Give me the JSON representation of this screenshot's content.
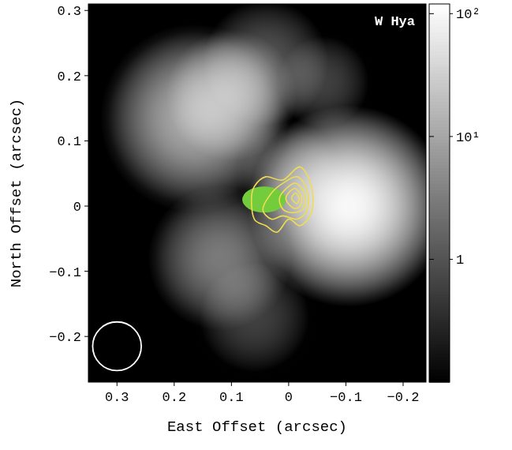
{
  "chart_data": {
    "type": "image",
    "title": "W Hya",
    "x_label": "East Offset (arcsec)",
    "y_label": "North Offset (arcsec)",
    "xlim": [
      0.35,
      -0.24
    ],
    "ylim": [
      -0.27,
      0.31
    ],
    "xticks": [
      0.3,
      0.2,
      0.1,
      0,
      {
        "value": -0.1,
        "label": "−0.1"
      },
      {
        "value": -0.2,
        "label": "−0.2"
      }
    ],
    "yticks": [
      {
        "value": -0.2,
        "label": "−0.2"
      },
      {
        "value": -0.1,
        "label": "−0.1"
      },
      0,
      0.1,
      0.2,
      0.3
    ],
    "sources": [
      {
        "x": -0.105,
        "y": 0.0,
        "peak": 100,
        "fwhm": 0.11
      },
      {
        "x": 0.165,
        "y": 0.135,
        "peak": 12,
        "fwhm": 0.12
      },
      {
        "x": 0.1,
        "y": 0.17,
        "peak": 3,
        "fwhm": 0.1
      },
      {
        "x": 0.12,
        "y": -0.08,
        "peak": 3,
        "fwhm": 0.11
      },
      {
        "x": 0.04,
        "y": 0.22,
        "peak": 1,
        "fwhm": 0.12
      },
      {
        "x": -0.06,
        "y": 0.19,
        "peak": 0.6,
        "fwhm": 0.1
      },
      {
        "x": 0.06,
        "y": -0.17,
        "peak": 0.6,
        "fwhm": 0.12
      },
      {
        "x": 0.0,
        "y": 0.05,
        "peak": 0.8,
        "fwhm": 0.1
      }
    ],
    "colorbar": {
      "range": [
        0.1,
        120
      ],
      "log": true,
      "ticks": [
        1,
        {
          "value": 10,
          "label": "10¹"
        },
        {
          "value": 100,
          "label": "10²"
        }
      ]
    },
    "ellipse": {
      "x": 0.043,
      "y": 0.01,
      "width": 0.076,
      "height": 0.04,
      "color": "#72cc3c"
    },
    "contours": {
      "color": "#f0dc50",
      "paths": [
        [
          [
            0.06,
            0.03
          ],
          [
            0.04,
            0.045
          ],
          [
            0.01,
            0.04
          ],
          [
            -0.02,
            0.06
          ],
          [
            -0.04,
            0.03
          ],
          [
            -0.04,
            -0.01
          ],
          [
            -0.02,
            -0.03
          ],
          [
            0.0,
            -0.02
          ],
          [
            0.02,
            -0.04
          ],
          [
            0.04,
            -0.03
          ],
          [
            0.06,
            -0.02
          ],
          [
            0.065,
            0.01
          ]
        ],
        [
          [
            0.03,
            0.02
          ],
          [
            0.01,
            0.035
          ],
          [
            -0.015,
            0.045
          ],
          [
            -0.032,
            0.025
          ],
          [
            -0.033,
            -0.005
          ],
          [
            -0.015,
            -0.02
          ],
          [
            0.01,
            -0.015
          ],
          [
            0.03,
            -0.02
          ],
          [
            0.045,
            -0.005
          ]
        ],
        [
          [
            0.015,
            0.015
          ],
          [
            -0.01,
            0.035
          ],
          [
            -0.027,
            0.02
          ],
          [
            -0.027,
            -0.002
          ],
          [
            -0.01,
            -0.01
          ],
          [
            0.01,
            -0.005
          ]
        ],
        [
          [
            0.005,
            0.012
          ],
          [
            -0.01,
            0.027
          ],
          [
            -0.022,
            0.015
          ],
          [
            -0.02,
            0.0
          ],
          [
            -0.008,
            -0.003
          ]
        ],
        [
          [
            -0.005,
            0.012
          ],
          [
            -0.012,
            0.02
          ],
          [
            -0.018,
            0.012
          ],
          [
            -0.014,
            0.004
          ]
        ]
      ]
    },
    "beam": {
      "x": 0.3,
      "y": -0.215,
      "diameter": 0.085,
      "color": "#ffffff"
    }
  }
}
